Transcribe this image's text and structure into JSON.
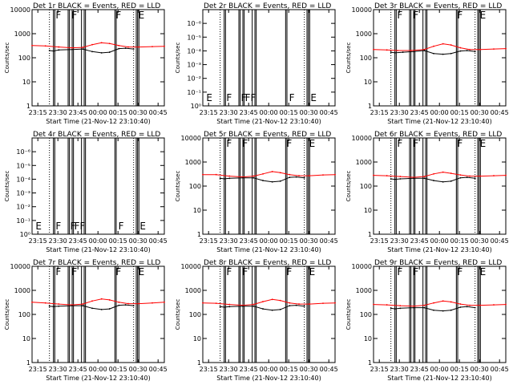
{
  "colors": {
    "events": "#000000",
    "lld": "#ff0000"
  },
  "shared": {
    "xlabel": "Start Time (21-Nov-12 23:10:40)",
    "ylabel": "Counts/sec",
    "xtick_labels": [
      "23:15",
      "23:30",
      "23:45",
      "00:00",
      "00:15",
      "00:30",
      "00:45"
    ],
    "xtick_minutes": [
      4.33,
      19.33,
      34.33,
      49.33,
      64.33,
      79.33,
      94.33
    ],
    "xlim_minutes": [
      0,
      99
    ],
    "attenuator_lines_minutes": [
      16,
      17,
      27,
      28,
      30,
      31,
      37,
      39,
      40,
      62,
      63,
      78,
      79,
      80
    ],
    "dotted_lines_minutes": [
      13,
      76
    ]
  },
  "chart_data": [
    {
      "type": "line",
      "title": "Det 1r BLACK = Events, RED = LLD",
      "ylim": [
        1,
        10000
      ],
      "yscale": "log",
      "ytick_labels": [
        "1",
        "10",
        "100",
        "1000",
        "10000"
      ],
      "ytick_values": [
        1,
        10,
        100,
        1000,
        10000
      ],
      "flag_labels": [
        {
          "text": "F",
          "x": 17
        },
        {
          "text": "F",
          "x": 29
        },
        {
          "text": "F",
          "x": 62
        },
        {
          "text": "E",
          "x": 79
        }
      ],
      "series": [
        {
          "name": "LLD",
          "color": "red",
          "x": [
            0,
            10,
            20,
            30,
            38,
            45,
            52,
            58,
            65,
            72,
            80,
            90,
            99
          ],
          "values": [
            320,
            310,
            280,
            260,
            270,
            350,
            420,
            390,
            320,
            280,
            280,
            290,
            300
          ]
        },
        {
          "name": "Events",
          "color": "black",
          "x": [
            13,
            16,
            20,
            30,
            38,
            45,
            52,
            58,
            65,
            70,
            76
          ],
          "values": [
            200,
            190,
            210,
            220,
            230,
            180,
            160,
            170,
            240,
            250,
            230
          ]
        }
      ]
    },
    {
      "type": "line",
      "title": "Det 2r BLACK = Events, RED = LLD",
      "ylim": [
        1,
        1e-07
      ],
      "yscale": "log",
      "ytick_labels": [
        "10⁰",
        "10⁻¹",
        "10⁻²",
        "10⁻³",
        "10⁻⁴",
        "10⁻⁵",
        "10⁻⁶"
      ],
      "ytick_values": [
        1,
        0.1,
        0.01,
        0.001,
        0.0001,
        1e-05,
        1e-06
      ],
      "flag_labels": [
        {
          "text": "E",
          "x": 2
        },
        {
          "text": "F",
          "x": 17
        },
        {
          "text": "F",
          "x": 28
        },
        {
          "text": "FF",
          "x": 31
        },
        {
          "text": "F",
          "x": 64
        },
        {
          "text": "E",
          "x": 80
        }
      ],
      "series": []
    },
    {
      "type": "line",
      "title": "Det 3r BLACK = Events, RED = LLD",
      "ylim": [
        1,
        10000
      ],
      "yscale": "log",
      "ytick_labels": [
        "1",
        "10",
        "100",
        "1000",
        "10000"
      ],
      "ytick_values": [
        1,
        10,
        100,
        1000,
        10000
      ],
      "flag_labels": [
        {
          "text": "F",
          "x": 17
        },
        {
          "text": "F",
          "x": 29
        },
        {
          "text": "F",
          "x": 62
        },
        {
          "text": "E",
          "x": 79
        }
      ],
      "series": [
        {
          "name": "LLD",
          "color": "red",
          "x": [
            0,
            10,
            18,
            28,
            38,
            45,
            52,
            58,
            65,
            72,
            80,
            90,
            99
          ],
          "values": [
            220,
            210,
            200,
            200,
            220,
            300,
            380,
            340,
            260,
            220,
            220,
            230,
            240
          ]
        },
        {
          "name": "Events",
          "color": "black",
          "x": [
            13,
            16,
            22,
            30,
            38,
            45,
            52,
            58,
            65,
            70,
            76
          ],
          "values": [
            170,
            160,
            170,
            180,
            200,
            150,
            140,
            150,
            190,
            200,
            180
          ]
        }
      ]
    },
    {
      "type": "line",
      "title": "Det 4r BLACK = Events, RED = LLD",
      "ylim": [
        1,
        1e-07
      ],
      "yscale": "log",
      "ytick_labels": [
        "10⁰",
        "10⁻¹",
        "10⁻²",
        "10⁻³",
        "10⁻⁴",
        "10⁻⁵",
        "10⁻⁶"
      ],
      "ytick_values": [
        1,
        0.1,
        0.01,
        0.001,
        0.0001,
        1e-05,
        1e-06
      ],
      "flag_labels": [
        {
          "text": "E",
          "x": 2
        },
        {
          "text": "F",
          "x": 17
        },
        {
          "text": "F",
          "x": 28
        },
        {
          "text": "FF",
          "x": 31
        },
        {
          "text": "F",
          "x": 64
        },
        {
          "text": "E",
          "x": 80
        }
      ],
      "series": []
    },
    {
      "type": "line",
      "title": "Det 5r BLACK = Events, RED = LLD",
      "ylim": [
        1,
        10000
      ],
      "yscale": "log",
      "ytick_labels": [
        "1",
        "10",
        "100",
        "1000",
        "10000"
      ],
      "ytick_values": [
        1,
        10,
        100,
        1000,
        10000
      ],
      "flag_labels": [
        {
          "text": "F",
          "x": 17
        },
        {
          "text": "F",
          "x": 29
        },
        {
          "text": "F",
          "x": 62
        },
        {
          "text": "E",
          "x": 79
        }
      ],
      "series": [
        {
          "name": "LLD",
          "color": "red",
          "x": [
            0,
            10,
            20,
            30,
            38,
            45,
            52,
            58,
            65,
            72,
            80,
            90,
            99
          ],
          "values": [
            300,
            300,
            260,
            240,
            260,
            320,
            400,
            360,
            300,
            270,
            270,
            290,
            300
          ]
        },
        {
          "name": "Events",
          "color": "black",
          "x": [
            13,
            16,
            20,
            30,
            38,
            45,
            52,
            58,
            65,
            70,
            76
          ],
          "values": [
            210,
            200,
            210,
            220,
            220,
            170,
            150,
            160,
            230,
            240,
            220
          ]
        }
      ]
    },
    {
      "type": "line",
      "title": "Det 6r BLACK = Events, RED = LLD",
      "ylim": [
        1,
        10000
      ],
      "yscale": "log",
      "ytick_labels": [
        "1",
        "10",
        "100",
        "1000",
        "10000"
      ],
      "ytick_values": [
        1,
        10,
        100,
        1000,
        10000
      ],
      "flag_labels": [
        {
          "text": "F",
          "x": 17
        },
        {
          "text": "F",
          "x": 29
        },
        {
          "text": "F",
          "x": 62
        },
        {
          "text": "E",
          "x": 79
        }
      ],
      "series": [
        {
          "name": "LLD",
          "color": "red",
          "x": [
            0,
            10,
            20,
            30,
            38,
            45,
            52,
            58,
            65,
            72,
            80,
            90,
            99
          ],
          "values": [
            280,
            270,
            250,
            230,
            250,
            320,
            380,
            340,
            290,
            260,
            260,
            270,
            280
          ]
        },
        {
          "name": "Events",
          "color": "black",
          "x": [
            13,
            16,
            20,
            30,
            38,
            45,
            52,
            58,
            65,
            70,
            76
          ],
          "values": [
            200,
            190,
            200,
            210,
            210,
            170,
            150,
            160,
            220,
            230,
            210
          ]
        }
      ]
    },
    {
      "type": "line",
      "title": "Det 7r BLACK = Events, RED = LLD",
      "ylim": [
        1,
        10000
      ],
      "yscale": "log",
      "ytick_labels": [
        "1",
        "10",
        "100",
        "1000",
        "10000"
      ],
      "ytick_values": [
        1,
        10,
        100,
        1000,
        10000
      ],
      "flag_labels": [
        {
          "text": "F",
          "x": 17
        },
        {
          "text": "F",
          "x": 29
        },
        {
          "text": "F",
          "x": 62
        },
        {
          "text": "E",
          "x": 79
        }
      ],
      "series": [
        {
          "name": "LLD",
          "color": "red",
          "x": [
            0,
            10,
            20,
            30,
            38,
            45,
            52,
            58,
            65,
            72,
            80,
            90,
            99
          ],
          "values": [
            320,
            300,
            270,
            250,
            270,
            360,
            440,
            400,
            320,
            280,
            280,
            300,
            320
          ]
        },
        {
          "name": "Events",
          "color": "black",
          "x": [
            13,
            16,
            20,
            30,
            38,
            45,
            52,
            58,
            65,
            70,
            76
          ],
          "values": [
            220,
            210,
            220,
            230,
            230,
            180,
            160,
            170,
            240,
            250,
            230
          ]
        }
      ]
    },
    {
      "type": "line",
      "title": "Det 8r BLACK = Events, RED = LLD",
      "ylim": [
        1,
        10000
      ],
      "yscale": "log",
      "ytick_labels": [
        "1",
        "10",
        "100",
        "1000",
        "10000"
      ],
      "ytick_values": [
        1,
        10,
        100,
        1000,
        10000
      ],
      "flag_labels": [
        {
          "text": "F",
          "x": 17
        },
        {
          "text": "F",
          "x": 29
        },
        {
          "text": "F",
          "x": 62
        },
        {
          "text": "E",
          "x": 79
        }
      ],
      "series": [
        {
          "name": "LLD",
          "color": "red",
          "x": [
            0,
            10,
            20,
            30,
            38,
            45,
            52,
            58,
            65,
            72,
            80,
            90,
            99
          ],
          "values": [
            300,
            290,
            260,
            240,
            260,
            340,
            420,
            380,
            300,
            270,
            270,
            290,
            300
          ]
        },
        {
          "name": "Events",
          "color": "black",
          "x": [
            13,
            16,
            20,
            30,
            38,
            45,
            52,
            58,
            65,
            70,
            76
          ],
          "values": [
            210,
            200,
            210,
            220,
            220,
            170,
            150,
            160,
            230,
            240,
            220
          ]
        }
      ]
    },
    {
      "type": "line",
      "title": "Det 9r BLACK = Events, RED = LLD",
      "ylim": [
        1,
        10000
      ],
      "yscale": "log",
      "ytick_labels": [
        "1",
        "10",
        "100",
        "1000",
        "10000"
      ],
      "ytick_values": [
        1,
        10,
        100,
        1000,
        10000
      ],
      "flag_labels": [
        {
          "text": "F",
          "x": 17
        },
        {
          "text": "F",
          "x": 29
        },
        {
          "text": "F",
          "x": 62
        },
        {
          "text": "E",
          "x": 79
        }
      ],
      "series": [
        {
          "name": "LLD",
          "color": "red",
          "x": [
            0,
            10,
            20,
            30,
            38,
            45,
            52,
            58,
            65,
            72,
            80,
            90,
            99
          ],
          "values": [
            260,
            250,
            230,
            220,
            240,
            300,
            360,
            330,
            270,
            240,
            240,
            250,
            260
          ]
        },
        {
          "name": "Events",
          "color": "black",
          "x": [
            13,
            16,
            20,
            30,
            38,
            45,
            52,
            58,
            65,
            70,
            76
          ],
          "values": [
            180,
            170,
            180,
            190,
            190,
            150,
            140,
            150,
            200,
            210,
            190
          ]
        }
      ]
    }
  ]
}
